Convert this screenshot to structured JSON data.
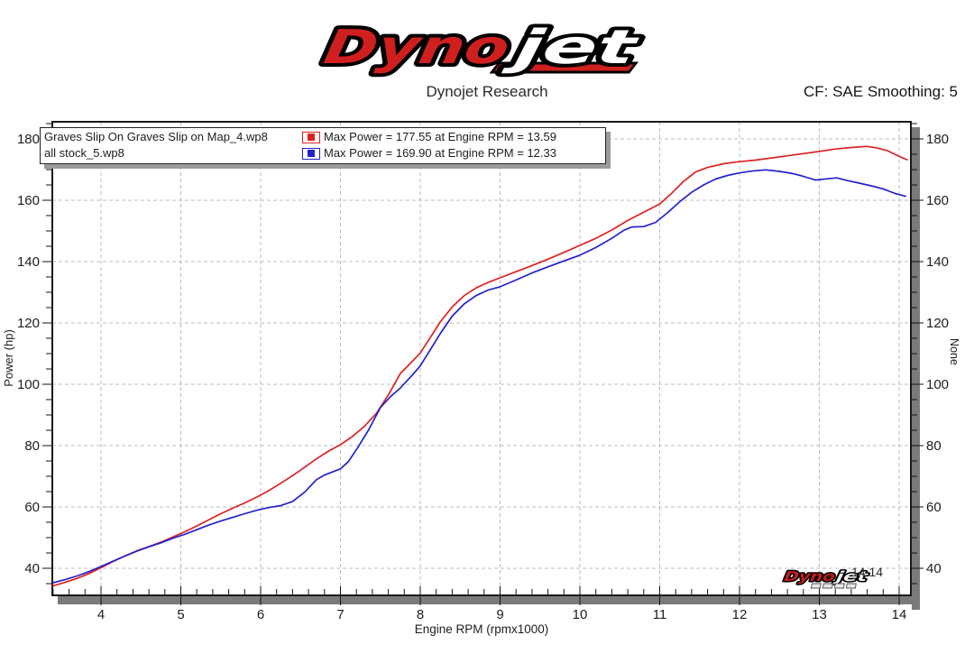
{
  "header": {
    "logo": {
      "part1": "Dyno",
      "part2": "jet",
      "red": "#d01f1f"
    },
    "subtitle": "Dynojet Research",
    "cf_label": "CF: SAE Smoothing: 5"
  },
  "legend": {
    "runs": [
      {
        "name": "Graves Slip On Graves Slip on Map_4.wp8",
        "color": "#dd2222",
        "stats": "Max Power = 177.55 at Engine RPM = 13.59"
      },
      {
        "name": "all stock_5.wp8",
        "color": "#2222cc",
        "stats": "Max Power = 169.90 at Engine RPM = 12.33"
      }
    ]
  },
  "chart_data": {
    "type": "line",
    "title": "",
    "xlabel": "Engine RPM (rpmx1000)",
    "ylabel_left": "Power (hp)",
    "ylabel_right": "None",
    "xlim": [
      3.39,
      14.15
    ],
    "ylim": [
      31,
      186
    ],
    "x_ticks": [
      4,
      5,
      6,
      7,
      8,
      9,
      10,
      11,
      12,
      13,
      14
    ],
    "y_ticks": [
      40,
      60,
      80,
      100,
      120,
      140,
      160,
      180
    ],
    "x_minor_step": 0.2,
    "y_minor_step": 5,
    "grid": "dashed",
    "legend_position": "top-left-inside",
    "end_label": "14.14",
    "colors": {
      "grid": "#bcbcbc",
      "border": "#1a1a1a",
      "shadow": "#7a7a7a",
      "text": "#1d1d1d"
    },
    "series": [
      {
        "name": "Graves Slip On Graves Slip on Map_4.wp8",
        "color": "#dd2222",
        "max_power": 177.55,
        "max_power_rpm": 13.59,
        "points": [
          [
            3.4,
            34.3
          ],
          [
            3.55,
            35.4
          ],
          [
            3.7,
            36.7
          ],
          [
            3.85,
            38.3
          ],
          [
            4.0,
            40.2
          ],
          [
            4.15,
            42.2
          ],
          [
            4.3,
            44.0
          ],
          [
            4.45,
            45.7
          ],
          [
            4.6,
            47.1
          ],
          [
            4.75,
            48.5
          ],
          [
            4.9,
            50.2
          ],
          [
            5.05,
            51.9
          ],
          [
            5.2,
            53.8
          ],
          [
            5.35,
            55.8
          ],
          [
            5.5,
            57.8
          ],
          [
            5.65,
            59.6
          ],
          [
            5.8,
            61.3
          ],
          [
            5.95,
            63.2
          ],
          [
            6.1,
            65.3
          ],
          [
            6.25,
            67.7
          ],
          [
            6.4,
            70.2
          ],
          [
            6.55,
            72.9
          ],
          [
            6.7,
            75.7
          ],
          [
            6.85,
            78.2
          ],
          [
            7.0,
            80.3
          ],
          [
            7.15,
            83.0
          ],
          [
            7.3,
            86.3
          ],
          [
            7.45,
            90.5
          ],
          [
            7.6,
            96.5
          ],
          [
            7.75,
            103.5
          ],
          [
            7.9,
            107.5
          ],
          [
            8.0,
            110.2
          ],
          [
            8.12,
            115.0
          ],
          [
            8.25,
            120.3
          ],
          [
            8.4,
            125.2
          ],
          [
            8.55,
            128.9
          ],
          [
            8.7,
            131.4
          ],
          [
            8.85,
            133.2
          ],
          [
            9.0,
            134.7
          ],
          [
            9.2,
            136.7
          ],
          [
            9.4,
            138.7
          ],
          [
            9.6,
            140.8
          ],
          [
            9.8,
            143.0
          ],
          [
            10.0,
            145.3
          ],
          [
            10.2,
            147.6
          ],
          [
            10.4,
            150.3
          ],
          [
            10.6,
            153.4
          ],
          [
            10.8,
            156.1
          ],
          [
            11.0,
            158.8
          ],
          [
            11.15,
            162.3
          ],
          [
            11.3,
            166.2
          ],
          [
            11.45,
            169.2
          ],
          [
            11.6,
            170.7
          ],
          [
            11.8,
            171.9
          ],
          [
            12.0,
            172.6
          ],
          [
            12.2,
            173.1
          ],
          [
            12.4,
            173.8
          ],
          [
            12.6,
            174.5
          ],
          [
            12.8,
            175.2
          ],
          [
            13.0,
            175.9
          ],
          [
            13.2,
            176.7
          ],
          [
            13.4,
            177.2
          ],
          [
            13.59,
            177.55
          ],
          [
            13.72,
            177.1
          ],
          [
            13.85,
            176.2
          ],
          [
            14.0,
            174.3
          ],
          [
            14.1,
            173.2
          ]
        ]
      },
      {
        "name": "all stock_5.wp8",
        "color": "#2222cc",
        "max_power": 169.9,
        "max_power_rpm": 12.33,
        "points": [
          [
            3.4,
            35.3
          ],
          [
            3.55,
            36.3
          ],
          [
            3.7,
            37.5
          ],
          [
            3.85,
            38.9
          ],
          [
            4.0,
            40.6
          ],
          [
            4.15,
            42.3
          ],
          [
            4.3,
            44.0
          ],
          [
            4.45,
            45.6
          ],
          [
            4.6,
            47.0
          ],
          [
            4.75,
            48.3
          ],
          [
            4.9,
            49.8
          ],
          [
            5.05,
            51.1
          ],
          [
            5.2,
            52.6
          ],
          [
            5.35,
            54.1
          ],
          [
            5.5,
            55.4
          ],
          [
            5.65,
            56.6
          ],
          [
            5.8,
            57.8
          ],
          [
            5.95,
            58.9
          ],
          [
            6.1,
            59.8
          ],
          [
            6.25,
            60.4
          ],
          [
            6.4,
            61.8
          ],
          [
            6.55,
            64.8
          ],
          [
            6.7,
            68.9
          ],
          [
            6.8,
            70.4
          ],
          [
            6.9,
            71.4
          ],
          [
            7.0,
            72.4
          ],
          [
            7.1,
            74.8
          ],
          [
            7.22,
            79.5
          ],
          [
            7.35,
            85.0
          ],
          [
            7.5,
            92.4
          ],
          [
            7.62,
            95.8
          ],
          [
            7.75,
            98.8
          ],
          [
            7.9,
            103.0
          ],
          [
            8.0,
            106.0
          ],
          [
            8.12,
            111.0
          ],
          [
            8.25,
            116.5
          ],
          [
            8.4,
            122.2
          ],
          [
            8.55,
            126.2
          ],
          [
            8.7,
            128.9
          ],
          [
            8.85,
            130.7
          ],
          [
            9.0,
            131.8
          ],
          [
            9.2,
            134.0
          ],
          [
            9.4,
            136.3
          ],
          [
            9.6,
            138.3
          ],
          [
            9.8,
            140.2
          ],
          [
            10.0,
            142.1
          ],
          [
            10.2,
            144.6
          ],
          [
            10.4,
            147.6
          ],
          [
            10.55,
            150.2
          ],
          [
            10.65,
            151.3
          ],
          [
            10.8,
            151.4
          ],
          [
            10.95,
            152.8
          ],
          [
            11.1,
            156.0
          ],
          [
            11.25,
            159.5
          ],
          [
            11.4,
            162.6
          ],
          [
            11.55,
            165.0
          ],
          [
            11.7,
            166.9
          ],
          [
            11.85,
            168.1
          ],
          [
            12.0,
            168.9
          ],
          [
            12.15,
            169.5
          ],
          [
            12.33,
            169.9
          ],
          [
            12.5,
            169.4
          ],
          [
            12.65,
            168.8
          ],
          [
            12.8,
            167.8
          ],
          [
            12.95,
            166.6
          ],
          [
            13.1,
            167.0
          ],
          [
            13.22,
            167.3
          ],
          [
            13.35,
            166.4
          ],
          [
            13.5,
            165.6
          ],
          [
            13.65,
            164.7
          ],
          [
            13.8,
            163.7
          ],
          [
            13.95,
            162.2
          ],
          [
            14.08,
            161.3
          ]
        ]
      }
    ]
  }
}
